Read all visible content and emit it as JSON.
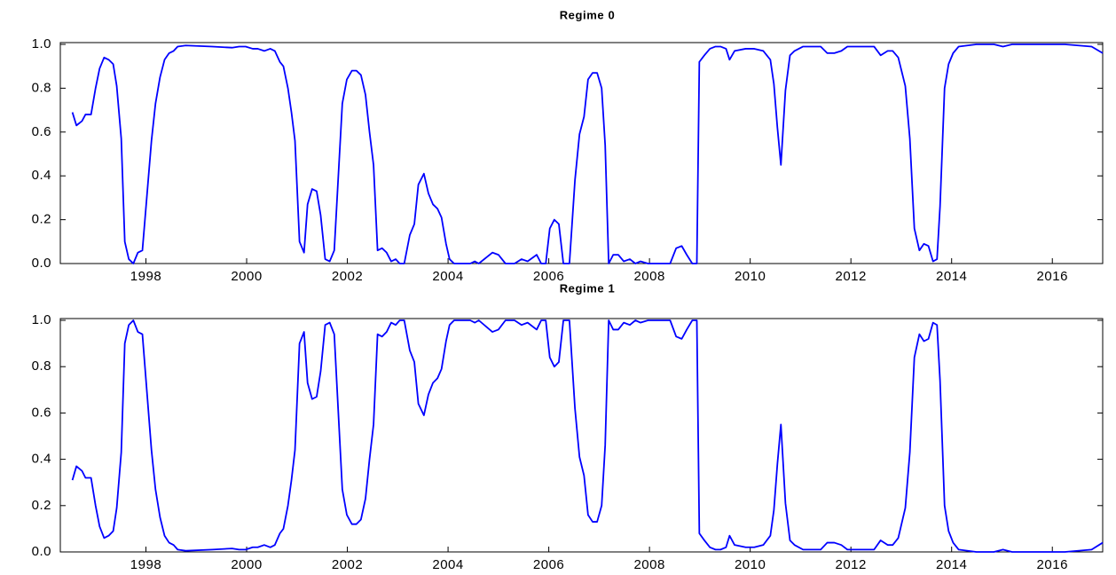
{
  "chart_data": [
    {
      "type": "line",
      "title": "Regime 0",
      "color": "#0000ff",
      "xlim": [
        1996.3,
        2017.0
      ],
      "xticks": [
        1998,
        2000,
        2002,
        2004,
        2006,
        2008,
        2010,
        2012,
        2014,
        2016
      ],
      "ylim": [
        0,
        1
      ],
      "yticks": [
        {
          "value": 0,
          "label": "0.0"
        },
        {
          "value": 0.2,
          "label": "0.2"
        },
        {
          "value": 0.4,
          "label": "0.4"
        },
        {
          "value": 0.6,
          "label": "0.6"
        },
        {
          "value": 0.8,
          "label": "0.8"
        },
        {
          "value": 1,
          "label": "1.0"
        }
      ],
      "grid": false,
      "x": [
        1996.54,
        1996.62,
        1996.73,
        1996.8,
        1996.91,
        1997.0,
        1997.08,
        1997.17,
        1997.26,
        1997.35,
        1997.42,
        1997.51,
        1997.58,
        1997.66,
        1997.75,
        1997.84,
        1997.93,
        1998.11,
        1998.19,
        1998.28,
        1998.37,
        1998.46,
        1998.55,
        1998.63,
        1998.79,
        1999.32,
        1999.71,
        1999.85,
        1999.98,
        2000.12,
        2000.22,
        2000.35,
        2000.47,
        2000.56,
        2000.66,
        2000.73,
        2000.82,
        2000.89,
        2000.96,
        2001.05,
        2001.14,
        2001.21,
        2001.3,
        2001.39,
        2001.47,
        2001.56,
        2001.65,
        2001.74,
        2001.9,
        2001.99,
        2002.09,
        2002.18,
        2002.27,
        2002.36,
        2002.44,
        2002.52,
        2002.6,
        2002.69,
        2002.78,
        2002.87,
        2002.96,
        2003.04,
        2003.13,
        2003.24,
        2003.33,
        2003.41,
        2003.52,
        2003.61,
        2003.7,
        2003.79,
        2003.87,
        2003.96,
        2004.03,
        2004.12,
        2004.44,
        2004.53,
        2004.61,
        2004.88,
        2005.0,
        2005.14,
        2005.32,
        2005.46,
        2005.58,
        2005.76,
        2005.85,
        2005.94,
        2006.02,
        2006.11,
        2006.2,
        2006.29,
        2006.41,
        2006.52,
        2006.61,
        2006.7,
        2006.78,
        2006.87,
        2006.96,
        2007.05,
        2007.12,
        2007.19,
        2007.28,
        2007.38,
        2007.49,
        2007.61,
        2007.72,
        2007.82,
        2007.97,
        2008.41,
        2008.53,
        2008.64,
        2008.74,
        2008.85,
        2008.94,
        2008.99,
        2009.09,
        2009.2,
        2009.31,
        2009.41,
        2009.52,
        2009.59,
        2009.69,
        2009.91,
        2010.08,
        2010.26,
        2010.4,
        2010.47,
        2010.54,
        2010.61,
        2010.7,
        2010.79,
        2010.88,
        2011.05,
        2011.4,
        2011.53,
        2011.67,
        2011.81,
        2011.93,
        2012.46,
        2012.59,
        2012.73,
        2012.83,
        2012.94,
        2013.08,
        2013.17,
        2013.26,
        2013.36,
        2013.45,
        2013.54,
        2013.63,
        2013.71,
        2013.77,
        2013.86,
        2013.94,
        2014.03,
        2014.14,
        2014.49,
        2014.84,
        2015.02,
        2015.2,
        2015.9,
        2016.25,
        2016.78,
        2017.0
      ],
      "values": [
        0.69,
        0.63,
        0.65,
        0.68,
        0.68,
        0.8,
        0.89,
        0.94,
        0.93,
        0.91,
        0.81,
        0.57,
        0.1,
        0.02,
        0,
        0.05,
        0.06,
        0.56,
        0.73,
        0.85,
        0.93,
        0.96,
        0.97,
        0.99,
        0.995,
        0.99,
        0.985,
        0.99,
        0.99,
        0.98,
        0.98,
        0.97,
        0.98,
        0.97,
        0.92,
        0.9,
        0.8,
        0.69,
        0.56,
        0.1,
        0.05,
        0.27,
        0.34,
        0.33,
        0.22,
        0.02,
        0.01,
        0.06,
        0.73,
        0.84,
        0.88,
        0.88,
        0.86,
        0.77,
        0.6,
        0.45,
        0.06,
        0.07,
        0.05,
        0.01,
        0.02,
        0,
        0,
        0.13,
        0.18,
        0.36,
        0.41,
        0.32,
        0.27,
        0.25,
        0.21,
        0.09,
        0.02,
        0,
        0,
        0.01,
        0,
        0.05,
        0.04,
        0,
        0,
        0.02,
        0.01,
        0.04,
        0,
        0,
        0.16,
        0.2,
        0.18,
        0,
        0,
        0.38,
        0.59,
        0.67,
        0.84,
        0.87,
        0.87,
        0.8,
        0.54,
        0,
        0.04,
        0.04,
        0.01,
        0.02,
        0,
        0.01,
        0,
        0,
        0.07,
        0.08,
        0.04,
        0,
        0,
        0.92,
        0.95,
        0.98,
        0.99,
        0.99,
        0.98,
        0.93,
        0.97,
        0.98,
        0.98,
        0.97,
        0.93,
        0.82,
        0.62,
        0.45,
        0.79,
        0.95,
        0.97,
        0.99,
        0.99,
        0.96,
        0.96,
        0.97,
        0.99,
        0.99,
        0.95,
        0.97,
        0.97,
        0.94,
        0.81,
        0.57,
        0.16,
        0.06,
        0.09,
        0.08,
        0.01,
        0.02,
        0.26,
        0.8,
        0.91,
        0.96,
        0.99,
        1,
        1,
        0.99,
        1,
        1,
        1,
        0.99,
        0.96
      ]
    },
    {
      "type": "line",
      "title": "Regime 1",
      "color": "#0000ff",
      "xlim": [
        1996.3,
        2017.0
      ],
      "xticks": [
        1998,
        2000,
        2002,
        2004,
        2006,
        2008,
        2010,
        2012,
        2014,
        2016
      ],
      "ylim": [
        0,
        1
      ],
      "yticks": [
        {
          "value": 0,
          "label": "0.0"
        },
        {
          "value": 0.2,
          "label": "0.2"
        },
        {
          "value": 0.4,
          "label": "0.4"
        },
        {
          "value": 0.6,
          "label": "0.6"
        },
        {
          "value": 0.8,
          "label": "0.8"
        },
        {
          "value": 1,
          "label": "1.0"
        }
      ],
      "grid": false,
      "x": [
        1996.54,
        1996.62,
        1996.73,
        1996.8,
        1996.91,
        1997.0,
        1997.08,
        1997.17,
        1997.26,
        1997.35,
        1997.42,
        1997.51,
        1997.58,
        1997.66,
        1997.75,
        1997.84,
        1997.93,
        1998.11,
        1998.19,
        1998.28,
        1998.37,
        1998.46,
        1998.55,
        1998.63,
        1998.79,
        1999.32,
        1999.71,
        1999.85,
        1999.98,
        2000.12,
        2000.22,
        2000.35,
        2000.47,
        2000.56,
        2000.66,
        2000.73,
        2000.82,
        2000.89,
        2000.96,
        2001.05,
        2001.14,
        2001.21,
        2001.3,
        2001.39,
        2001.47,
        2001.56,
        2001.65,
        2001.74,
        2001.9,
        2001.99,
        2002.09,
        2002.18,
        2002.27,
        2002.36,
        2002.44,
        2002.52,
        2002.6,
        2002.69,
        2002.78,
        2002.87,
        2002.96,
        2003.04,
        2003.13,
        2003.24,
        2003.33,
        2003.41,
        2003.52,
        2003.61,
        2003.7,
        2003.79,
        2003.87,
        2003.96,
        2004.03,
        2004.12,
        2004.44,
        2004.53,
        2004.61,
        2004.88,
        2005.0,
        2005.14,
        2005.32,
        2005.46,
        2005.58,
        2005.76,
        2005.85,
        2005.94,
        2006.02,
        2006.11,
        2006.2,
        2006.29,
        2006.41,
        2006.52,
        2006.61,
        2006.7,
        2006.78,
        2006.87,
        2006.96,
        2007.05,
        2007.12,
        2007.19,
        2007.28,
        2007.38,
        2007.49,
        2007.61,
        2007.72,
        2007.82,
        2007.97,
        2008.41,
        2008.53,
        2008.64,
        2008.74,
        2008.85,
        2008.94,
        2008.99,
        2009.09,
        2009.2,
        2009.31,
        2009.41,
        2009.52,
        2009.59,
        2009.69,
        2009.91,
        2010.08,
        2010.26,
        2010.4,
        2010.47,
        2010.54,
        2010.61,
        2010.7,
        2010.79,
        2010.88,
        2011.05,
        2011.4,
        2011.53,
        2011.67,
        2011.81,
        2011.93,
        2012.46,
        2012.59,
        2012.73,
        2012.83,
        2012.94,
        2013.08,
        2013.17,
        2013.26,
        2013.36,
        2013.45,
        2013.54,
        2013.63,
        2013.71,
        2013.77,
        2013.86,
        2013.94,
        2014.03,
        2014.14,
        2014.49,
        2014.84,
        2015.02,
        2015.2,
        2015.9,
        2016.25,
        2016.78,
        2017.0
      ],
      "values": [
        0.31,
        0.37,
        0.35,
        0.32,
        0.32,
        0.2,
        0.11,
        0.06,
        0.07,
        0.09,
        0.19,
        0.43,
        0.9,
        0.98,
        1,
        0.95,
        0.94,
        0.44,
        0.27,
        0.15,
        0.07,
        0.04,
        0.03,
        0.01,
        0.005,
        0.01,
        0.015,
        0.01,
        0.01,
        0.02,
        0.02,
        0.03,
        0.02,
        0.03,
        0.08,
        0.1,
        0.2,
        0.31,
        0.44,
        0.9,
        0.95,
        0.73,
        0.66,
        0.67,
        0.78,
        0.98,
        0.99,
        0.94,
        0.27,
        0.16,
        0.12,
        0.12,
        0.14,
        0.23,
        0.4,
        0.55,
        0.94,
        0.93,
        0.95,
        0.99,
        0.98,
        1,
        1,
        0.87,
        0.82,
        0.64,
        0.59,
        0.68,
        0.73,
        0.75,
        0.79,
        0.91,
        0.98,
        1,
        1,
        0.99,
        1,
        0.95,
        0.96,
        1,
        1,
        0.98,
        0.99,
        0.96,
        1,
        1,
        0.84,
        0.8,
        0.82,
        1,
        1,
        0.62,
        0.41,
        0.33,
        0.16,
        0.13,
        0.13,
        0.2,
        0.46,
        1,
        0.96,
        0.96,
        0.99,
        0.98,
        1,
        0.99,
        1,
        1,
        0.93,
        0.92,
        0.96,
        1,
        1,
        0.08,
        0.05,
        0.02,
        0.01,
        0.01,
        0.02,
        0.07,
        0.03,
        0.02,
        0.02,
        0.03,
        0.07,
        0.18,
        0.38,
        0.55,
        0.21,
        0.05,
        0.03,
        0.01,
        0.01,
        0.04,
        0.04,
        0.03,
        0.01,
        0.01,
        0.05,
        0.03,
        0.03,
        0.06,
        0.19,
        0.43,
        0.84,
        0.94,
        0.91,
        0.92,
        0.99,
        0.98,
        0.74,
        0.2,
        0.09,
        0.04,
        0.01,
        0,
        0,
        0.01,
        0,
        0,
        0,
        0.01,
        0.04
      ]
    }
  ]
}
